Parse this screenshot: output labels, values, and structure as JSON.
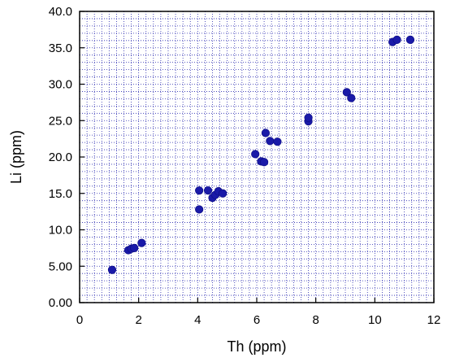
{
  "chart_data": {
    "type": "scatter",
    "title": "",
    "xlabel": "Th  (ppm)",
    "ylabel": "Li  (ppm)",
    "xlim": [
      0,
      12
    ],
    "ylim": [
      0,
      40
    ],
    "x_ticks": [
      "0",
      "2",
      "4",
      "6",
      "8",
      "10",
      "12"
    ],
    "y_ticks": [
      "0.00",
      "5.00",
      "10.0",
      "15.0",
      "20.0",
      "25.0",
      "30.0",
      "35.0",
      "40.0"
    ],
    "grid": true,
    "grid_style": "dotted minor grid every 0.25 in x and 1.0 in y",
    "marker_color": "#1a1aa8",
    "points": [
      {
        "x": 1.1,
        "y": 4.5
      },
      {
        "x": 1.65,
        "y": 7.2
      },
      {
        "x": 1.75,
        "y": 7.4
      },
      {
        "x": 1.85,
        "y": 7.5
      },
      {
        "x": 2.1,
        "y": 8.2
      },
      {
        "x": 4.05,
        "y": 12.8
      },
      {
        "x": 4.05,
        "y": 15.4
      },
      {
        "x": 4.35,
        "y": 15.4
      },
      {
        "x": 4.5,
        "y": 14.4
      },
      {
        "x": 4.6,
        "y": 14.8
      },
      {
        "x": 4.7,
        "y": 15.3
      },
      {
        "x": 4.85,
        "y": 15.0
      },
      {
        "x": 5.95,
        "y": 20.4
      },
      {
        "x": 6.15,
        "y": 19.4
      },
      {
        "x": 6.25,
        "y": 19.3
      },
      {
        "x": 6.3,
        "y": 23.3
      },
      {
        "x": 6.45,
        "y": 22.2
      },
      {
        "x": 6.7,
        "y": 22.1
      },
      {
        "x": 7.75,
        "y": 24.9
      },
      {
        "x": 7.75,
        "y": 25.4
      },
      {
        "x": 9.05,
        "y": 28.9
      },
      {
        "x": 9.2,
        "y": 28.1
      },
      {
        "x": 10.6,
        "y": 35.8
      },
      {
        "x": 10.75,
        "y": 36.1
      },
      {
        "x": 11.2,
        "y": 36.1
      }
    ]
  }
}
